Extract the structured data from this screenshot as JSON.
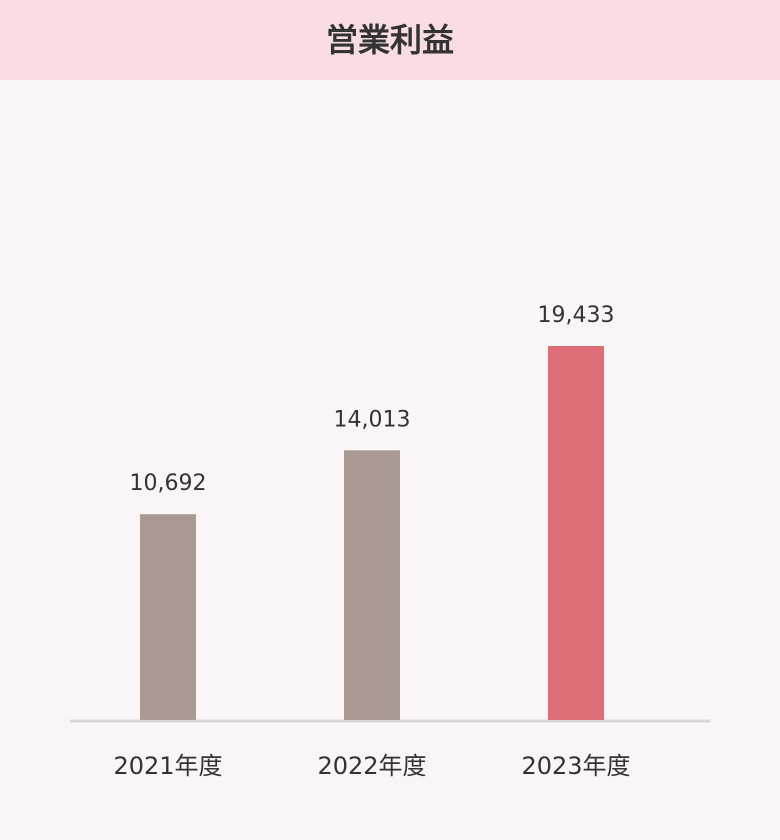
{
  "chart_data": {
    "type": "bar",
    "title": "営業利益",
    "categories": [
      "2021年度",
      "2022年度",
      "2023年度"
    ],
    "values": [
      10692,
      14013,
      19433
    ],
    "value_labels": [
      "10,692",
      "14,013",
      "19,433"
    ],
    "colors": [
      "#a89991",
      "#a89991",
      "#dd6e78"
    ]
  }
}
